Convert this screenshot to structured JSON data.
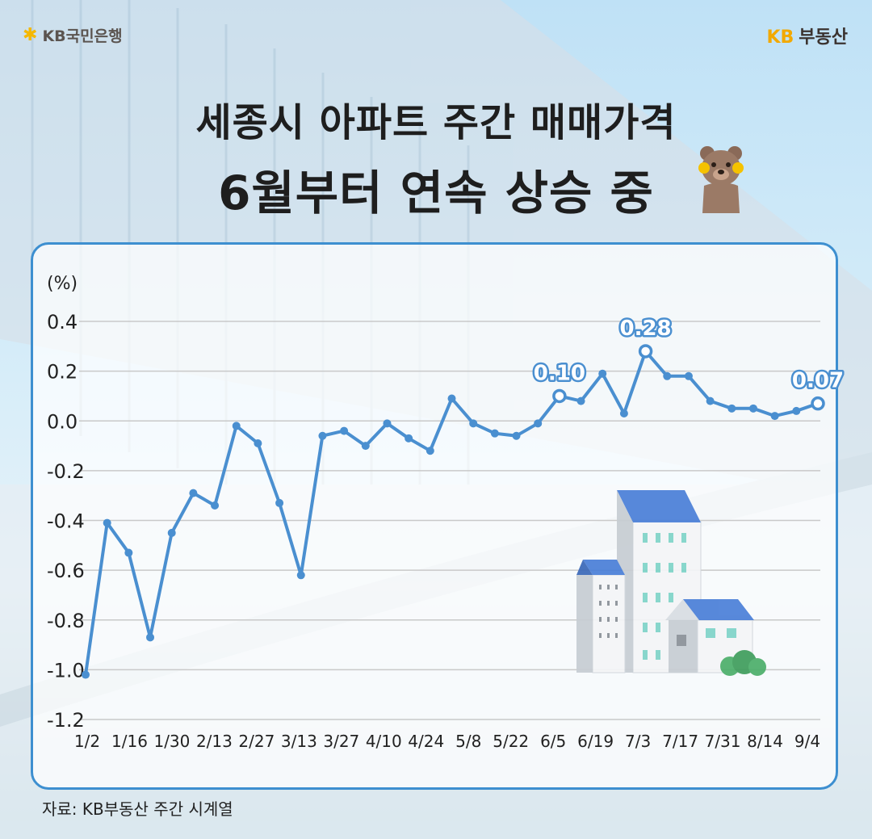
{
  "header": {
    "bank_logo_text": "KB국민은행",
    "brand_kb": "KB",
    "brand_name": "부동산"
  },
  "title": {
    "line1": "세종시 아파트 주간 매매가격",
    "line2": "6월부터 연속 상승 중"
  },
  "source": "자료: KB부동산 주간 시계열",
  "colors": {
    "line": "#4a8fd0",
    "panel_border": "#3d8fd0",
    "grid": "#c9c9c9",
    "label_text": "#ffffff",
    "brand": "#f2a900"
  },
  "chart_data": {
    "type": "line",
    "unit_label": "(%)",
    "ylim": [
      -1.2,
      0.4
    ],
    "y_ticks": [
      0.4,
      0.2,
      0.0,
      -0.2,
      -0.4,
      -0.6,
      -0.8,
      -1.0,
      -1.2
    ],
    "y_tick_labels": [
      "0.4",
      "0.2",
      "0.0",
      "-0.2",
      "-0.4",
      "-0.6",
      "-0.8",
      "-1.0",
      "-1.2"
    ],
    "x_tick_labels": [
      "1/2",
      "1/16",
      "1/30",
      "2/13",
      "2/27",
      "3/13",
      "3/27",
      "4/10",
      "4/24",
      "5/8",
      "5/22",
      "6/5",
      "6/19",
      "7/3",
      "7/17",
      "7/31",
      "8/14",
      "9/4"
    ],
    "grid": true,
    "series": [
      {
        "values": [
          -1.02,
          -0.41,
          -0.53,
          -0.87,
          -0.45,
          -0.29,
          -0.34,
          -0.02,
          -0.09,
          -0.33,
          -0.62,
          -0.06,
          -0.04,
          -0.1,
          -0.01,
          -0.07,
          -0.12,
          0.09,
          -0.01,
          -0.05,
          -0.06,
          -0.01,
          0.1,
          0.08,
          0.19,
          0.03,
          0.28,
          0.18,
          0.18,
          0.08,
          0.05,
          0.05,
          0.02,
          0.04,
          0.07
        ],
        "highlighted": [
          {
            "index": 22,
            "label": "0.10"
          },
          {
            "index": 26,
            "label": "0.28"
          },
          {
            "index": 34,
            "label": "0.07"
          }
        ]
      }
    ]
  }
}
